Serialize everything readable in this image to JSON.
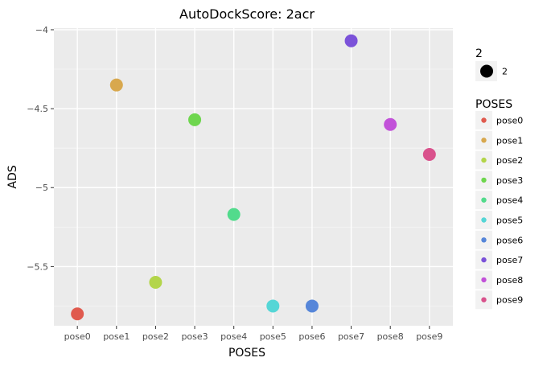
{
  "chart_data": {
    "type": "scatter",
    "title": "AutoDockScore: 2acr",
    "xlabel": "POSES",
    "ylabel": "ADS",
    "categories": [
      "pose0",
      "pose1",
      "pose2",
      "pose3",
      "pose4",
      "pose5",
      "pose6",
      "pose7",
      "pose8",
      "pose9"
    ],
    "values": [
      -5.8,
      -4.35,
      -5.6,
      -4.57,
      -5.17,
      -5.75,
      -5.75,
      -4.07,
      -4.6,
      -4.79
    ],
    "y_ticks": [
      -4,
      -4.5,
      -5,
      -5.5
    ],
    "y_tick_labels": [
      "−4",
      "−4.5",
      "−5",
      "−5.5"
    ],
    "ylim": [
      -5.875,
      -3.99
    ],
    "grid": true,
    "legend_placement": "right",
    "colors": [
      "#e05a4e",
      "#d8a84e",
      "#b3d54a",
      "#6ed64e",
      "#52db8c",
      "#55d6d6",
      "#5686d9",
      "#7b52d9",
      "#c252d9",
      "#d9528c"
    ]
  },
  "legend_size": {
    "title": "2",
    "label": "2"
  },
  "legend_color": {
    "title": "POSES"
  }
}
